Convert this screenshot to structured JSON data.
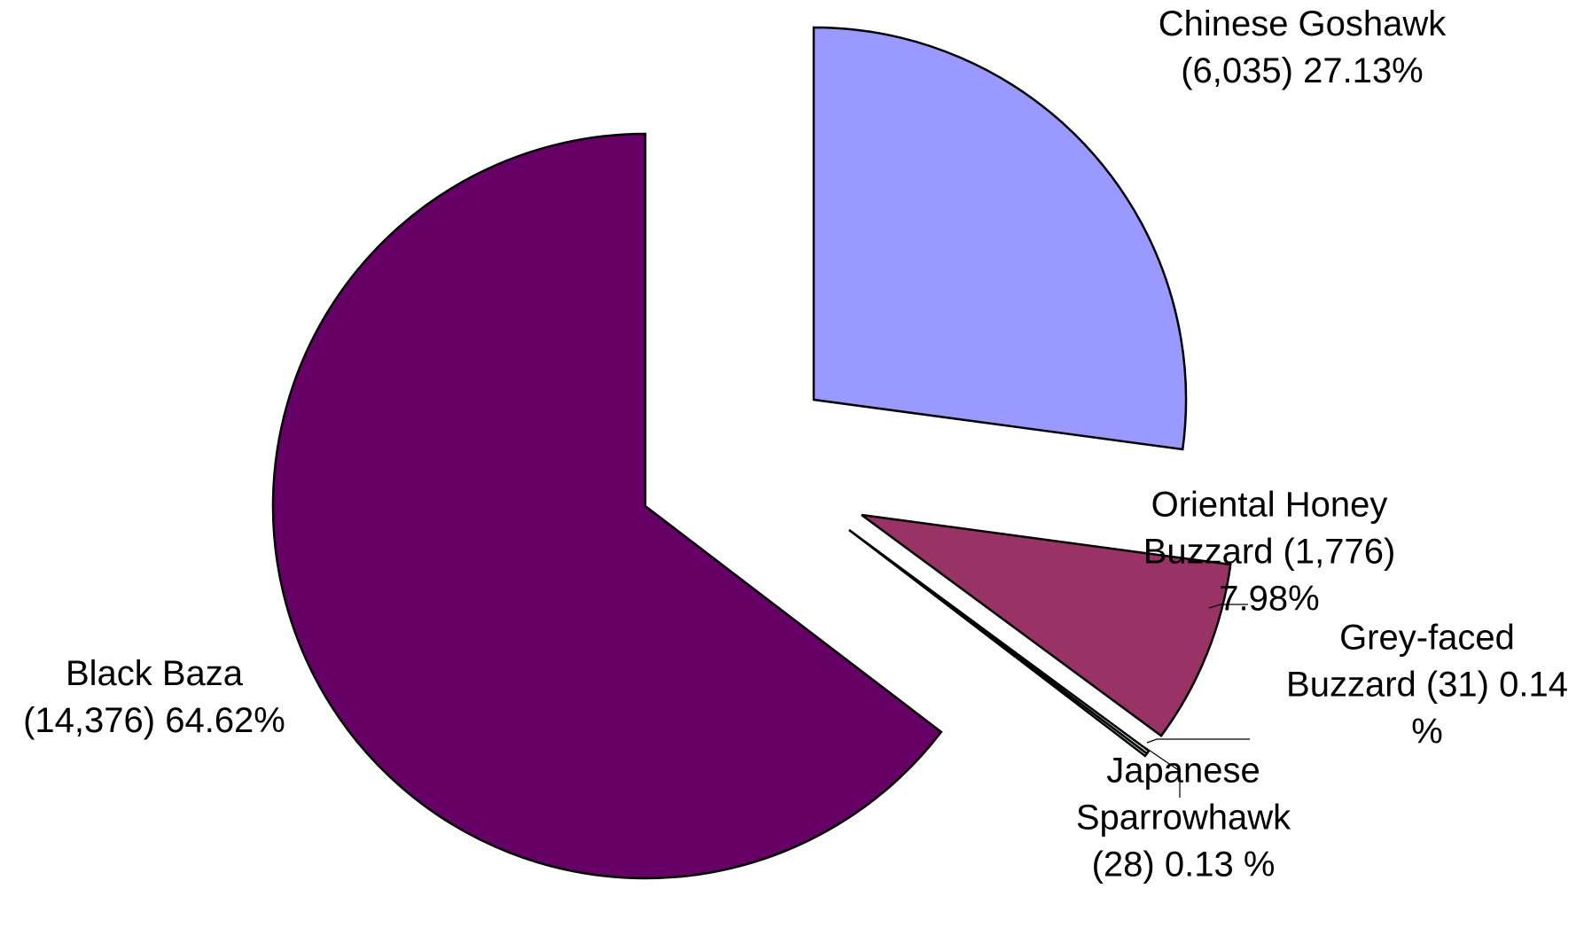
{
  "chart_data": {
    "type": "pie",
    "title": "",
    "slices": [
      {
        "name": "Chinese Goshawk",
        "value": 6035,
        "percent": 27.13,
        "color": "#9999ff",
        "label_lines": [
          "Chinese Goshawk",
          "(6,035) 27.13%"
        ]
      },
      {
        "name": "Oriental Honey Buzzard",
        "value": 1776,
        "percent": 7.98,
        "color": "#993366",
        "label_lines": [
          "Oriental Honey",
          "Buzzard (1,776)",
          "7.98%"
        ]
      },
      {
        "name": "Grey-faced Buzzard",
        "value": 31,
        "percent": 0.14,
        "color": "#ffffcc",
        "label_lines": [
          "Grey-faced",
          "Buzzard (31) 0.14",
          "%"
        ]
      },
      {
        "name": "Japanese Sparrowhawk",
        "value": 28,
        "percent": 0.13,
        "color": "#ccffff",
        "label_lines": [
          "Japanese",
          "Sparrowhawk",
          "(28) 0.13 %"
        ]
      },
      {
        "name": "Black Baza",
        "value": 14376,
        "percent": 64.62,
        "color": "#660066",
        "label_lines": [
          "Black Baza",
          "(14,376) 64.62%"
        ]
      }
    ]
  }
}
